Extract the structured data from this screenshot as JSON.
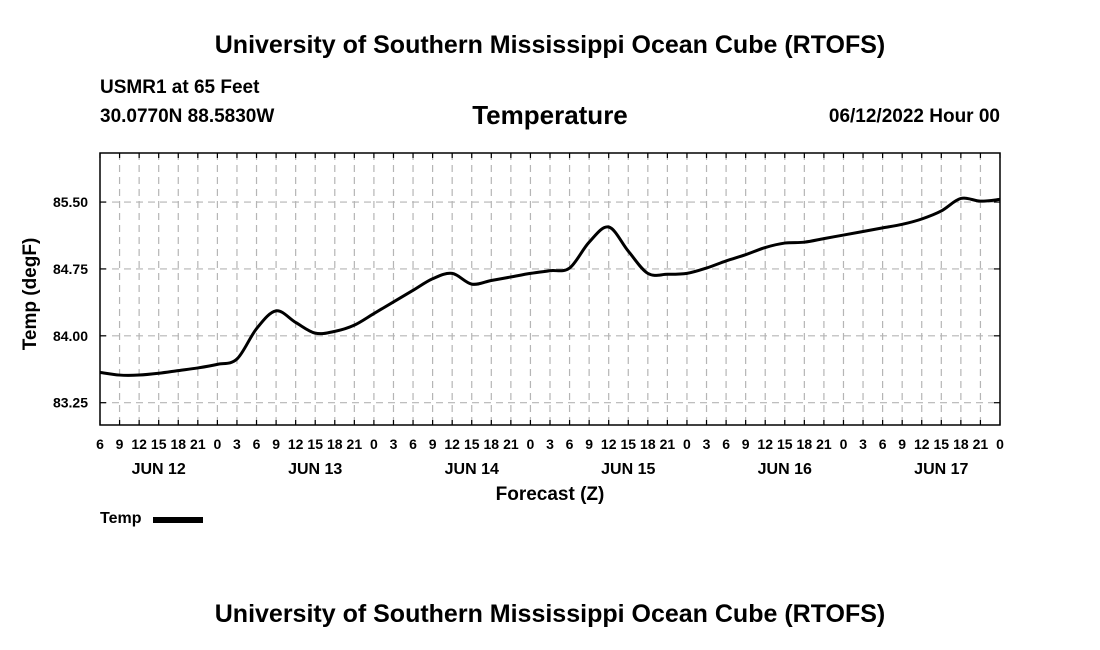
{
  "header": {
    "main_title": "University of Southern Mississippi Ocean Cube (RTOFS)",
    "station": "USMR1 at 65 Feet",
    "coords": "30.0770N  88.5830W",
    "run_time": "06/12/2022 Hour 00"
  },
  "footer": {
    "title": "University of Southern Mississippi Ocean Cube (RTOFS)"
  },
  "legend": {
    "label": "Temp",
    "color": "#000000"
  },
  "chart_data": {
    "type": "line",
    "title": "Temperature",
    "xlabel": "Forecast (Z)",
    "ylabel": "Temp (degF)",
    "ylim": [
      83.0,
      86.05
    ],
    "y_ticks": [
      83.25,
      84.0,
      84.75,
      85.5
    ],
    "y_tick_labels": [
      "83.25",
      "84.00",
      "84.75",
      "85.50"
    ],
    "x_range_hours": [
      0,
      138
    ],
    "x_tick_labels": [
      "6",
      "9",
      "12",
      "15",
      "18",
      "21",
      "0",
      "3",
      "6",
      "9",
      "12",
      "15",
      "18",
      "21",
      "0",
      "3",
      "6",
      "9",
      "12",
      "15",
      "18",
      "21",
      "0",
      "3",
      "6",
      "9",
      "12",
      "15",
      "18",
      "21",
      "0",
      "3",
      "6",
      "9",
      "12",
      "15",
      "18",
      "21",
      "0",
      "3",
      "6",
      "9",
      "12",
      "15",
      "18",
      "21",
      "0"
    ],
    "day_labels": [
      "JUN 12",
      "JUN 13",
      "JUN 14",
      "JUN 15",
      "JUN 16",
      "JUN 17"
    ],
    "day_label_hours": [
      9,
      33,
      57,
      81,
      105,
      129
    ],
    "grid": true,
    "series": [
      {
        "name": "Temp",
        "x_hours": [
          0,
          3,
          6,
          9,
          12,
          15,
          18,
          21,
          24,
          27,
          30,
          33,
          36,
          39,
          42,
          45,
          48,
          51,
          54,
          57,
          60,
          63,
          66,
          69,
          72,
          75,
          78,
          81,
          84,
          87,
          90,
          93,
          96,
          99,
          102,
          105,
          108,
          111,
          114,
          117,
          120,
          123,
          126,
          129,
          132,
          135,
          138
        ],
        "values": [
          83.59,
          83.56,
          83.56,
          83.58,
          83.61,
          83.64,
          83.68,
          83.74,
          84.08,
          84.28,
          84.15,
          84.03,
          84.05,
          84.12,
          84.25,
          84.38,
          84.51,
          84.64,
          84.7,
          84.58,
          84.62,
          84.66,
          84.7,
          84.73,
          84.76,
          85.05,
          85.22,
          84.95,
          84.7,
          84.69,
          84.7,
          84.76,
          84.84,
          84.91,
          84.99,
          85.04,
          85.05,
          85.09,
          85.13,
          85.17,
          85.21,
          85.25,
          85.31,
          85.4,
          85.54,
          85.51,
          85.53
        ]
      }
    ]
  }
}
